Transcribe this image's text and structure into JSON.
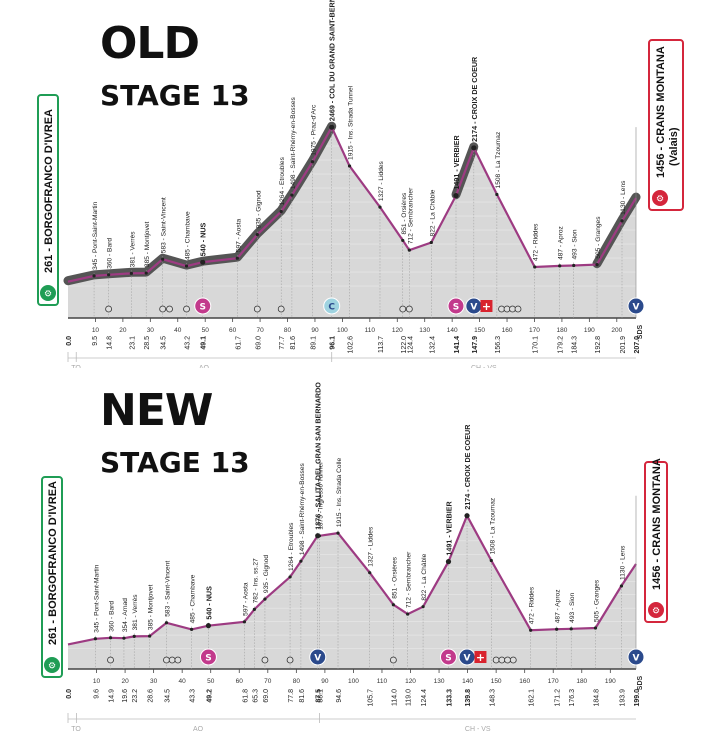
{
  "colors": {
    "profile_fill": "#d8d8d8",
    "ridge": "#555555",
    "route_line": "#9d3b82",
    "start_green": "#1f9d55",
    "finish_red": "#d4263c",
    "sprint": "#c23a8c",
    "kom": "#2b4a8c",
    "swiss": "#d9232e"
  },
  "chart_data": [
    {
      "type": "area",
      "heading": {
        "line1": "OLD",
        "line2": "STAGE 13"
      },
      "start": {
        "elevation": 261,
        "name": "BORGOFRANCO D'IVREA"
      },
      "finish": {
        "elevation": 1456,
        "name": "CRANS MONTANA",
        "sub": "(Valais)"
      },
      "profile_km": [
        0,
        9.5,
        14.8,
        23.1,
        28.5,
        34.5,
        43.2,
        49.1,
        61.7,
        69.0,
        77.7,
        81.6,
        89.1,
        96.1,
        102.6,
        113.7,
        122.0,
        124.4,
        132.4,
        141.4,
        147.9,
        156.3,
        170.1,
        179.2,
        184.3,
        192.8,
        201.9,
        207.0
      ],
      "profile_ele": [
        261,
        345,
        360,
        381,
        385,
        583,
        485,
        540,
        597,
        935,
        1264,
        1498,
        1975,
        2469,
        1915,
        1327,
        851,
        712,
        822,
        1491,
        2174,
        1508,
        472,
        487,
        493,
        505,
        1130,
        1456
      ],
      "points": [
        {
          "km": 0,
          "ele": 261,
          "label": ""
        },
        {
          "km": 9.5,
          "ele": 345,
          "label": "345 - Pont-Saint-Martin"
        },
        {
          "km": 14.8,
          "ele": 360,
          "label": "360 - Bard"
        },
        {
          "km": 23.1,
          "ele": 381,
          "label": "381 - Verrès"
        },
        {
          "km": 28.5,
          "ele": 385,
          "label": "385 - Montjovet"
        },
        {
          "km": 34.5,
          "ele": 583,
          "label": "583 - Saint-Vincent"
        },
        {
          "km": 43.2,
          "ele": 485,
          "label": "485 - Chambave"
        },
        {
          "km": 49.1,
          "ele": 540,
          "label": "540 - NUS",
          "bold": true
        },
        {
          "km": 61.7,
          "ele": 597,
          "label": "597 - Aosta"
        },
        {
          "km": 69.0,
          "ele": 935,
          "label": "935 - Gignod"
        },
        {
          "km": 77.7,
          "ele": 1264,
          "label": "1264 - Etroubles"
        },
        {
          "km": 81.6,
          "ele": 1498,
          "label": "1498 - Saint-Rhémy-en-Bosses"
        },
        {
          "km": 89.1,
          "ele": 1975,
          "label": "1975 - Praz-d'Arc"
        },
        {
          "km": 96.1,
          "ele": 2469,
          "label": "2469 - COL DU GRAND SAINT-BERNARD",
          "bold": true
        },
        {
          "km": 102.6,
          "ele": 1915,
          "label": "1915 - Ins. Strada Tunnel"
        },
        {
          "km": 113.7,
          "ele": 1327,
          "label": "1327 - Liddes"
        },
        {
          "km": 122.0,
          "ele": 851,
          "label": "851 - Orsières"
        },
        {
          "km": 124.4,
          "ele": 712,
          "label": "712 - Sembrancher"
        },
        {
          "km": 132.4,
          "ele": 822,
          "label": "822 - La Châble"
        },
        {
          "km": 141.4,
          "ele": 1491,
          "label": "1491 - VERBIER",
          "bold": true
        },
        {
          "km": 147.9,
          "ele": 2174,
          "label": "2174 - CROIX DE COEUR",
          "bold": true
        },
        {
          "km": 156.3,
          "ele": 1508,
          "label": "1508 - La Tzoumaz"
        },
        {
          "km": 170.1,
          "ele": 472,
          "label": "472 - Riddes"
        },
        {
          "km": 179.2,
          "ele": 487,
          "label": "487 - Aproz"
        },
        {
          "km": 184.3,
          "ele": 493,
          "label": "493 - Sion"
        },
        {
          "km": 192.8,
          "ele": 505,
          "label": "505 - Granges"
        },
        {
          "km": 201.9,
          "ele": 1130,
          "label": "1130 - Lens"
        },
        {
          "km": 207.0,
          "ele": 1456,
          "label": ""
        }
      ],
      "km_labels": [
        {
          "v": "0.0",
          "bold": true
        },
        {
          "v": "9.5"
        },
        {
          "v": "14.8"
        },
        {
          "v": "23.1"
        },
        {
          "v": "28.5"
        },
        {
          "v": "34.5"
        },
        {
          "v": "43.2"
        },
        {
          "v": "49.1",
          "bold": true
        },
        {
          "v": "61.7"
        },
        {
          "v": "69.0"
        },
        {
          "v": "77.7"
        },
        {
          "v": "81.6"
        },
        {
          "v": "89.1"
        },
        {
          "v": "96.1",
          "bold": true
        },
        {
          "v": "102.6"
        },
        {
          "v": "113.7"
        },
        {
          "v": "122.0"
        },
        {
          "v": "124.4"
        },
        {
          "v": "132.4"
        },
        {
          "v": "141.4",
          "bold": true
        },
        {
          "v": "147.9",
          "bold": true
        },
        {
          "v": "156.3"
        },
        {
          "v": "170.1"
        },
        {
          "v": "179.2"
        },
        {
          "v": "184.3"
        },
        {
          "v": "192.8"
        },
        {
          "v": "201.9"
        },
        {
          "v": "207.0",
          "bold": true
        }
      ],
      "ticks": [
        "10",
        "20",
        "30",
        "40",
        "50",
        "60",
        "70",
        "80",
        "90",
        "100",
        "110",
        "120",
        "130",
        "140",
        "150",
        "160",
        "170",
        "180",
        "190",
        "200"
      ],
      "regions": [
        {
          "label": "TO",
          "from": 0,
          "to": 3
        },
        {
          "label": "AO",
          "from": 3,
          "to": 96.1
        },
        {
          "label": "CH - VS",
          "from": 96.1,
          "to": 207
        }
      ],
      "markers": [
        {
          "km": 49.1,
          "type": "sprint",
          "label": "S"
        },
        {
          "km": 96.1,
          "type": "gpm",
          "label": "C"
        },
        {
          "km": 141.4,
          "type": "sprint",
          "label": "S"
        },
        {
          "km": 147.9,
          "type": "kom",
          "label": "V"
        },
        {
          "km": 152.5,
          "type": "swiss",
          "label": "+"
        },
        {
          "km": 207.0,
          "type": "kom",
          "label": "V"
        }
      ],
      "markers_text": "SDS",
      "tunnel_icons": [
        14.8,
        34.5,
        37.0,
        43.2,
        69.0,
        77.7,
        122.0,
        124.4,
        158.0,
        160.0,
        162.0,
        164.0
      ],
      "ylim": [
        0,
        2600
      ],
      "xlim": [
        0,
        207.0
      ],
      "ridge": [
        [
          0,
          96.1
        ],
        [
          141.4,
          147.9
        ],
        [
          192.8,
          207.0
        ]
      ],
      "inner_y": [
        "2400",
        "2200",
        "2000",
        "1800",
        "1600",
        "1400",
        "1200",
        "1000",
        "800",
        "600",
        "400",
        "200"
      ]
    },
    {
      "type": "area",
      "heading": {
        "line1": "NEW",
        "line2": "STAGE 13"
      },
      "start": {
        "elevation": 261,
        "name": "BORGOFRANCO D'IVREA"
      },
      "finish": {
        "elevation": 1456,
        "name": "CRANS MONTANA",
        "sub": ""
      },
      "profile_km": [
        0,
        9.6,
        14.9,
        19.6,
        23.2,
        28.6,
        34.5,
        43.3,
        49.2,
        61.8,
        65.3,
        69.0,
        77.8,
        81.6,
        87.5,
        88.1,
        94.6,
        105.7,
        114.0,
        119.0,
        124.4,
        133.3,
        139.8,
        148.3,
        162.1,
        171.2,
        176.3,
        184.8,
        193.9,
        199.0
      ],
      "profile_ele": [
        261,
        345,
        360,
        354,
        381,
        385,
        583,
        485,
        540,
        597,
        782,
        935,
        1264,
        1498,
        1876,
        1875,
        1915,
        1327,
        851,
        712,
        822,
        1491,
        2174,
        1508,
        472,
        487,
        493,
        505,
        1130,
        1456
      ],
      "points": [
        {
          "km": 0,
          "ele": 261,
          "label": ""
        },
        {
          "km": 9.6,
          "ele": 345,
          "label": "345 - Pont-Saint-Martin"
        },
        {
          "km": 14.9,
          "ele": 360,
          "label": "360 - Bard"
        },
        {
          "km": 19.6,
          "ele": 354,
          "label": "354 - Arnad"
        },
        {
          "km": 23.2,
          "ele": 381,
          "label": "381 - Verrès"
        },
        {
          "km": 28.6,
          "ele": 385,
          "label": "385 - Montjovet"
        },
        {
          "km": 34.5,
          "ele": 583,
          "label": "583 - Saint-Vincent"
        },
        {
          "km": 43.3,
          "ele": 485,
          "label": "485 - Chambave"
        },
        {
          "km": 49.2,
          "ele": 540,
          "label": "540 - NUS",
          "bold": true
        },
        {
          "km": 61.8,
          "ele": 597,
          "label": "597 - Aosta"
        },
        {
          "km": 65.3,
          "ele": 782,
          "label": "782 - Ins. ss.27"
        },
        {
          "km": 69.0,
          "ele": 935,
          "label": "935 - Gignod"
        },
        {
          "km": 77.8,
          "ele": 1264,
          "label": "1264 - Etroubles"
        },
        {
          "km": 81.6,
          "ele": 1498,
          "label": "1498 - Saint-Rhémy-en-Bosses"
        },
        {
          "km": 87.5,
          "ele": 1876,
          "label": "1876 - SALITA DEL GRAN SAN BERNARDO",
          "bold": true
        },
        {
          "km": 88.1,
          "ele": 1875,
          "label": "1875 - Ingresso Tunnel"
        },
        {
          "km": 94.6,
          "ele": 1915,
          "label": "1915 - Ins. Strada Colle"
        },
        {
          "km": 105.7,
          "ele": 1327,
          "label": "1327 - Liddes"
        },
        {
          "km": 114.0,
          "ele": 851,
          "label": "851 - Orsières"
        },
        {
          "km": 119.0,
          "ele": 712,
          "label": "712 - Sembrancher"
        },
        {
          "km": 124.4,
          "ele": 822,
          "label": "822 - La Châble"
        },
        {
          "km": 133.3,
          "ele": 1491,
          "label": "1491 - VERBIER",
          "bold": true
        },
        {
          "km": 139.8,
          "ele": 2174,
          "label": "2174 - CROIX DE COEUR",
          "bold": true
        },
        {
          "km": 148.3,
          "ele": 1508,
          "label": "1508 - La Tzoumaz"
        },
        {
          "km": 162.1,
          "ele": 472,
          "label": "472 - Riddes"
        },
        {
          "km": 171.2,
          "ele": 487,
          "label": "487 - Aproz"
        },
        {
          "km": 176.3,
          "ele": 493,
          "label": "493 - Sion"
        },
        {
          "km": 184.8,
          "ele": 505,
          "label": "505 - Granges"
        },
        {
          "km": 193.9,
          "ele": 1130,
          "label": "1130 - Lens"
        },
        {
          "km": 199.0,
          "ele": 1456,
          "label": ""
        }
      ],
      "km_labels": [
        {
          "v": "0.0",
          "bold": true
        },
        {
          "v": "9.6"
        },
        {
          "v": "14.9"
        },
        {
          "v": "19.6"
        },
        {
          "v": "23.2"
        },
        {
          "v": "28.6"
        },
        {
          "v": "34.5"
        },
        {
          "v": "43.3"
        },
        {
          "v": "49.2",
          "bold": true
        },
        {
          "v": "61.8"
        },
        {
          "v": "65.3"
        },
        {
          "v": "69.0"
        },
        {
          "v": "77.8"
        },
        {
          "v": "81.6"
        },
        {
          "v": "87.5",
          "bold": true
        },
        {
          "v": "88.1"
        },
        {
          "v": "94.6"
        },
        {
          "v": "105.7"
        },
        {
          "v": "114.0"
        },
        {
          "v": "119.0"
        },
        {
          "v": "124.4"
        },
        {
          "v": "133.3",
          "bold": true
        },
        {
          "v": "139.8",
          "bold": true
        },
        {
          "v": "148.3"
        },
        {
          "v": "162.1"
        },
        {
          "v": "171.2"
        },
        {
          "v": "176.3"
        },
        {
          "v": "184.8"
        },
        {
          "v": "193.9"
        },
        {
          "v": "199.0",
          "bold": true
        }
      ],
      "ticks": [
        "10",
        "20",
        "30",
        "40",
        "50",
        "60",
        "70",
        "80",
        "90",
        "100",
        "110",
        "120",
        "130",
        "140",
        "150",
        "160",
        "170",
        "180",
        "190"
      ],
      "regions": [
        {
          "label": "TO",
          "from": 0,
          "to": 3
        },
        {
          "label": "AO",
          "from": 3,
          "to": 88.1
        },
        {
          "label": "CH - VS",
          "from": 88.1,
          "to": 199
        }
      ],
      "markers": [
        {
          "km": 49.2,
          "type": "sprint",
          "label": "S"
        },
        {
          "km": 87.5,
          "type": "kom",
          "label": "V"
        },
        {
          "km": 133.3,
          "type": "sprint",
          "label": "S"
        },
        {
          "km": 139.8,
          "type": "kom",
          "label": "V"
        },
        {
          "km": 144.5,
          "type": "swiss",
          "label": "+"
        },
        {
          "km": 199.0,
          "type": "kom",
          "label": "V"
        }
      ],
      "markers_text": "SDS",
      "tunnel_icons": [
        14.9,
        34.5,
        36.5,
        38.5,
        69.0,
        77.8,
        114.0,
        150.0,
        152.0,
        154.0,
        156.0
      ],
      "ylim": [
        0,
        2600
      ],
      "xlim": [
        0,
        199.0
      ],
      "ridge": [],
      "inner_y": [
        "2200",
        "2000",
        "1800",
        "1600",
        "1400",
        "1200",
        "1000",
        "800",
        "600",
        "400",
        "200"
      ]
    }
  ]
}
